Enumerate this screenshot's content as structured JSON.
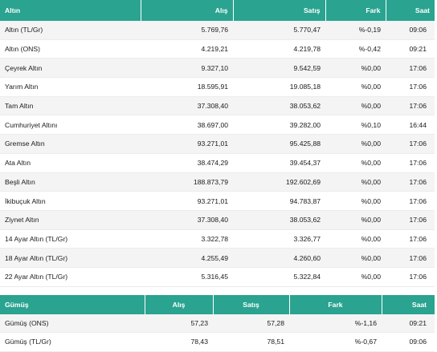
{
  "gold": {
    "headers": {
      "name": "Altın",
      "buy": "Alış",
      "sell": "Satış",
      "change": "Fark",
      "time": "Saat"
    },
    "rows": [
      {
        "name": "Altın (TL/Gr)",
        "buy": "5.769,76",
        "sell": "5.770,47",
        "change": "%-0,19",
        "time": "09:06"
      },
      {
        "name": "Altın (ONS)",
        "buy": "4.219,21",
        "sell": "4.219,78",
        "change": "%-0,42",
        "time": "09:21"
      },
      {
        "name": "Çeyrek Altın",
        "buy": "9.327,10",
        "sell": "9.542,59",
        "change": "%0,00",
        "time": "17:06"
      },
      {
        "name": "Yarım Altın",
        "buy": "18.595,91",
        "sell": "19.085,18",
        "change": "%0,00",
        "time": "17:06"
      },
      {
        "name": "Tam Altın",
        "buy": "37.308,40",
        "sell": "38.053,62",
        "change": "%0,00",
        "time": "17:06"
      },
      {
        "name": "Cumhuriyet Altını",
        "buy": "38.697,00",
        "sell": "39.282,00",
        "change": "%0,10",
        "time": "16:44"
      },
      {
        "name": "Gremse Altın",
        "buy": "93.271,01",
        "sell": "95.425,88",
        "change": "%0,00",
        "time": "17:06"
      },
      {
        "name": "Ata Altın",
        "buy": "38.474,29",
        "sell": "39.454,37",
        "change": "%0,00",
        "time": "17:06"
      },
      {
        "name": "Beşli Altın",
        "buy": "188.873,79",
        "sell": "192.602,69",
        "change": "%0,00",
        "time": "17:06"
      },
      {
        "name": "İkibuçuk Altın",
        "buy": "93.271,01",
        "sell": "94.783,87",
        "change": "%0,00",
        "time": "17:06"
      },
      {
        "name": "Ziynet Altın",
        "buy": "37.308,40",
        "sell": "38.053,62",
        "change": "%0,00",
        "time": "17:06"
      },
      {
        "name": "14 Ayar Altın (TL/Gr)",
        "buy": "3.322,78",
        "sell": "3.326,77",
        "change": "%0,00",
        "time": "17:06"
      },
      {
        "name": "18 Ayar Altın (TL/Gr)",
        "buy": "4.255,49",
        "sell": "4.260,60",
        "change": "%0,00",
        "time": "17:06"
      },
      {
        "name": "22 Ayar Altın (TL/Gr)",
        "buy": "5.316,45",
        "sell": "5.322,84",
        "change": "%0,00",
        "time": "17:06"
      }
    ]
  },
  "silver": {
    "headers": {
      "name": "Gümüş",
      "buy": "Alış",
      "sell": "Satış",
      "change": "Fark",
      "time": "Saat"
    },
    "rows": [
      {
        "name": "Gümüş (ONS)",
        "buy": "57,23",
        "sell": "57,28",
        "change": "%-1,16",
        "time": "09:21"
      },
      {
        "name": "Gümüş (TL/Gr)",
        "buy": "78,43",
        "sell": "78,51",
        "change": "%-0,67",
        "time": "09:06"
      }
    ]
  },
  "colors": {
    "header_bg": "#2aa390",
    "header_text": "#ffffff",
    "row_alt": "#f4f4f4"
  }
}
